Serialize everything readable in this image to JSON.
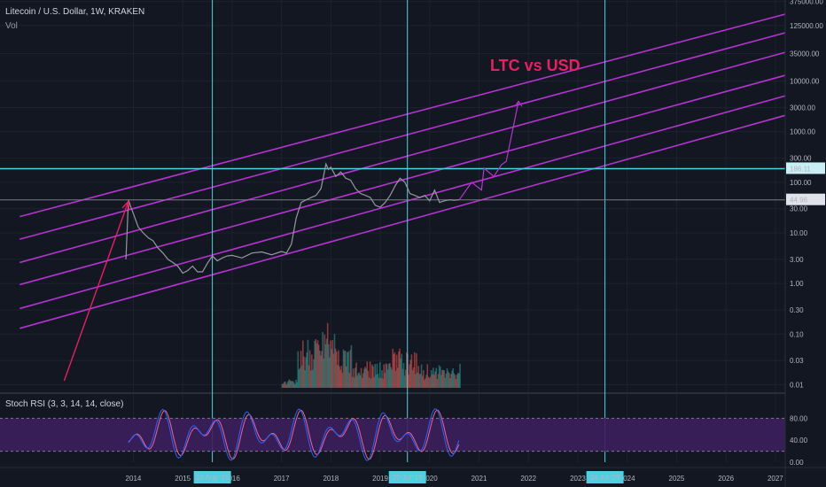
{
  "header": {
    "title": "Litecoin / U.S. Dollar, 1W, KRAKEN",
    "volume_label": "Vol",
    "rsi_label": "Stoch RSI (3, 3, 14, 14, close)"
  },
  "annotation": {
    "text": "LTC vs USD",
    "color": "#e91e63"
  },
  "colors": {
    "background": "#131722",
    "channel": "#b533d0",
    "price_line": "#9598a1",
    "cyan": "#4dd0e1",
    "rsi_fill": "#3d1f5c",
    "rsi_k": "#2962ff",
    "rsi_d": "#f06292",
    "arrow": "#e91e63"
  },
  "chart_data": {
    "type": "line",
    "title": "Litecoin / U.S. Dollar, 1W, KRAKEN",
    "y_scale": "log",
    "price_ticks": [
      "375000.00",
      "125000.00",
      "35000.00",
      "10000.00",
      "3000.00",
      "1000.00",
      "300.00",
      "100.00",
      "30.00",
      "10.00",
      "3.00",
      "1.00",
      "0.30",
      "0.10",
      "0.03",
      "0.01"
    ],
    "price_tick_values": [
      375000,
      125000,
      35000,
      10000,
      3000,
      1000,
      300,
      100,
      30,
      10,
      3,
      1,
      0.3,
      0.1,
      0.03,
      0.01
    ],
    "x_ticks": [
      "2014",
      "2015",
      "2016",
      "2017",
      "2018",
      "2019",
      "2020",
      "2021",
      "2022",
      "2023",
      "2024",
      "2025",
      "2026",
      "2027"
    ],
    "x_tick_values": [
      2014,
      2015,
      2016,
      2017,
      2018,
      2019,
      2020,
      2021,
      2022,
      2023,
      2024,
      2025,
      2026,
      2027
    ],
    "x_range": [
      2011.3,
      2027.2
    ],
    "y_range": [
      0.008,
      400000
    ],
    "markers": {
      "horizontal_level": {
        "value": 186.11,
        "label": "186.11"
      },
      "last_price": {
        "value": 44.96,
        "label": "44.96"
      },
      "vertical_dates": [
        {
          "x": 2015.6,
          "label": "10 Aug '15"
        },
        {
          "x": 2019.55,
          "label": "22 Jul '19"
        },
        {
          "x": 2023.55,
          "label": "24 Jul '23"
        }
      ]
    },
    "channel_lines": [
      {
        "x": [
          2011.7,
          2027.2
        ],
        "y": [
          0.13,
          2100
        ]
      },
      {
        "x": [
          2011.7,
          2027.2
        ],
        "y": [
          0.32,
          5100
        ]
      },
      {
        "x": [
          2011.7,
          2027.2
        ],
        "y": [
          0.95,
          13000
        ]
      },
      {
        "x": [
          2011.7,
          2027.2
        ],
        "y": [
          2.6,
          37000
        ]
      },
      {
        "x": [
          2011.7,
          2027.2
        ],
        "y": [
          7.5,
          90000
        ]
      },
      {
        "x": [
          2011.7,
          2027.2
        ],
        "y": [
          21,
          210000
        ]
      }
    ],
    "series": [
      {
        "x": [
          2013.85,
          2013.9,
          2013.95,
          2014.0,
          2014.1,
          2014.2,
          2014.3,
          2014.4,
          2014.5,
          2014.6,
          2014.7,
          2014.8,
          2014.9,
          2015.0,
          2015.1,
          2015.2,
          2015.3,
          2015.4,
          2015.5,
          2015.6,
          2015.7,
          2015.8,
          2015.9,
          2016.0,
          2016.2,
          2016.4,
          2016.6,
          2016.8,
          2017.0,
          2017.1,
          2017.2,
          2017.3,
          2017.4,
          2017.5,
          2017.6,
          2017.7,
          2017.8,
          2017.9,
          2017.95,
          2018.0,
          2018.1,
          2018.2,
          2018.3,
          2018.4,
          2018.5,
          2018.6,
          2018.7,
          2018.8,
          2018.9,
          2019.0,
          2019.1,
          2019.2,
          2019.3,
          2019.4,
          2019.5,
          2019.6,
          2019.7,
          2019.8,
          2019.9,
          2020.0,
          2020.1,
          2020.2,
          2020.3,
          2020.4,
          2020.5,
          2020.6
        ],
        "y": [
          3,
          45,
          32,
          24,
          13,
          10,
          8,
          7,
          5,
          4,
          3,
          2.6,
          2.2,
          1.6,
          1.8,
          2.2,
          1.7,
          1.7,
          2.5,
          3.5,
          2.8,
          3.2,
          3.5,
          3.6,
          3.2,
          4,
          4.2,
          3.7,
          4.3,
          4,
          6,
          20,
          40,
          45,
          50,
          55,
          75,
          230,
          180,
          200,
          130,
          160,
          120,
          110,
          75,
          60,
          55,
          50,
          35,
          32,
          40,
          55,
          85,
          120,
          100,
          60,
          55,
          50,
          55,
          43,
          70,
          40,
          43,
          45,
          44,
          45
        ]
      }
    ],
    "projection": {
      "x": [
        2020.6,
        2020.85,
        2021.05,
        2021.1,
        2021.3,
        2021.45,
        2021.55,
        2021.8
      ],
      "y": [
        45,
        100,
        70,
        190,
        130,
        220,
        260,
        4000
      ]
    },
    "arrow": {
      "x": [
        2012.6,
        2013.9
      ],
      "y": [
        0.012,
        42
      ]
    },
    "volume": {
      "note": "weekly volume bars"
    },
    "stoch_rsi": {
      "ticks": [
        "80.00",
        "40.00",
        "0.00"
      ],
      "tick_values": [
        80,
        40,
        0
      ],
      "upper_band": 80,
      "lower_band": 20
    }
  }
}
